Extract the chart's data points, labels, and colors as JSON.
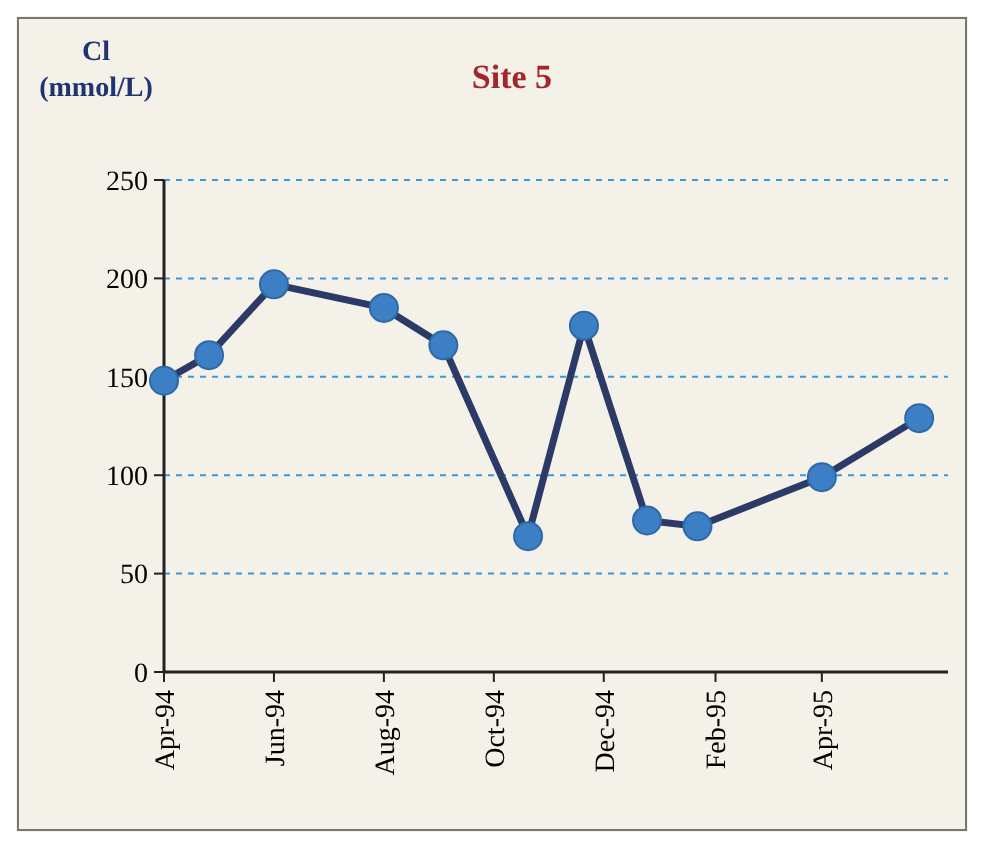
{
  "chart_data": {
    "type": "line",
    "title": "Site 5",
    "ylabel": "Cl (mmol/L)",
    "x": [
      "1994-04-01",
      "1994-04-26",
      "1994-06-01",
      "1994-08-01",
      "1994-09-03",
      "1994-10-20",
      "1994-11-20",
      "1994-12-25",
      "1995-01-22",
      "1995-04-01",
      "1995-05-25"
    ],
    "series": [
      {
        "color": "#2b3a67",
        "values": [
          148,
          161,
          197,
          185,
          166,
          69,
          176,
          77,
          74,
          99,
          129
        ]
      }
    ],
    "marker": "circle",
    "grid": "y",
    "line_style": "solid",
    "xlim": [
      "1994-04-01",
      "1995-06-10"
    ],
    "xticks": [
      {
        "value": "1994-04-01",
        "label": "Apr-94"
      },
      {
        "value": "1994-06-01",
        "label": "Jun-94"
      },
      {
        "value": "1994-08-01",
        "label": "Aug-94"
      },
      {
        "value": "1994-10-01",
        "label": "Oct-94"
      },
      {
        "value": "1994-12-01",
        "label": "Dec-94"
      },
      {
        "value": "1995-02-01",
        "label": "Feb-95"
      },
      {
        "value": "1995-04-01",
        "label": "Apr-95"
      }
    ],
    "ylim": [
      0,
      250
    ],
    "yticks": [
      0,
      50,
      100,
      150,
      200,
      250
    ]
  }
}
